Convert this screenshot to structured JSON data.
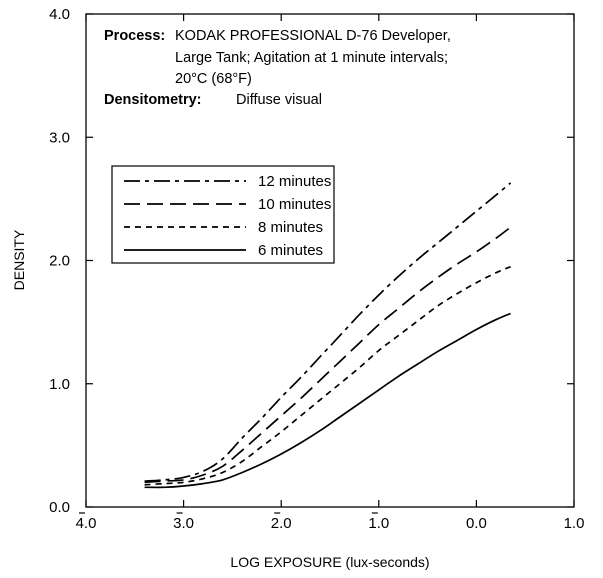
{
  "chart_data": {
    "type": "line",
    "xlabel": "LOG EXPOSURE (lux-seconds)",
    "ylabel": "DENSITY",
    "xlim": [
      -4.0,
      1.0
    ],
    "ylim": [
      0.0,
      4.0
    ],
    "x_ticks": [
      {
        "value": -4.0,
        "label": "4.0",
        "bar": true
      },
      {
        "value": -3.0,
        "label": "3.0",
        "bar": true
      },
      {
        "value": -2.0,
        "label": "2.0",
        "bar": true
      },
      {
        "value": -1.0,
        "label": "1.0",
        "bar": true
      },
      {
        "value": 0.0,
        "label": "0.0",
        "bar": false
      },
      {
        "value": 1.0,
        "label": "1.0",
        "bar": false
      }
    ],
    "y_ticks": [
      {
        "value": 0.0,
        "label": "0.0"
      },
      {
        "value": 1.0,
        "label": "1.0"
      },
      {
        "value": 2.0,
        "label": "2.0"
      },
      {
        "value": 3.0,
        "label": "3.0"
      },
      {
        "value": 4.0,
        "label": "4.0"
      }
    ],
    "annotation": {
      "process_label": "Process:",
      "process_lines": [
        "KODAK PROFESSIONAL D-76 Developer,",
        "Large Tank; Agitation at 1 minute intervals;",
        "20°C (68°F)"
      ],
      "densitometry_label": "Densitometry:",
      "densitometry_value": "Diffuse visual"
    },
    "legend_position": "upper-left",
    "series": [
      {
        "name": "12 minutes",
        "style": "dash-dot",
        "x": [
          -3.4,
          -3.2,
          -3.0,
          -2.8,
          -2.6,
          -2.4,
          -2.2,
          -2.0,
          -1.8,
          -1.6,
          -1.4,
          -1.2,
          -1.0,
          -0.8,
          -0.6,
          -0.4,
          -0.2,
          0.0,
          0.2,
          0.35
        ],
        "y": [
          0.21,
          0.22,
          0.24,
          0.29,
          0.39,
          0.56,
          0.72,
          0.89,
          1.05,
          1.22,
          1.39,
          1.56,
          1.72,
          1.87,
          2.01,
          2.14,
          2.27,
          2.4,
          2.53,
          2.63
        ]
      },
      {
        "name": "10 minutes",
        "style": "long-dash",
        "x": [
          -3.4,
          -3.2,
          -3.0,
          -2.8,
          -2.6,
          -2.4,
          -2.2,
          -2.0,
          -1.8,
          -1.6,
          -1.4,
          -1.2,
          -1.0,
          -0.8,
          -0.6,
          -0.4,
          -0.2,
          0.0,
          0.2,
          0.35
        ],
        "y": [
          0.2,
          0.21,
          0.22,
          0.26,
          0.33,
          0.46,
          0.6,
          0.74,
          0.88,
          1.03,
          1.18,
          1.33,
          1.48,
          1.61,
          1.74,
          1.86,
          1.97,
          2.07,
          2.18,
          2.27
        ]
      },
      {
        "name": "8 minutes",
        "style": "short-dash",
        "x": [
          -3.4,
          -3.2,
          -3.0,
          -2.8,
          -2.6,
          -2.4,
          -2.2,
          -2.0,
          -1.8,
          -1.6,
          -1.4,
          -1.2,
          -1.0,
          -0.8,
          -0.6,
          -0.4,
          -0.2,
          0.0,
          0.2,
          0.35
        ],
        "y": [
          0.18,
          0.19,
          0.2,
          0.23,
          0.28,
          0.37,
          0.49,
          0.61,
          0.74,
          0.87,
          1.0,
          1.13,
          1.27,
          1.39,
          1.51,
          1.63,
          1.73,
          1.82,
          1.9,
          1.95
        ]
      },
      {
        "name": "6 minutes",
        "style": "solid",
        "x": [
          -3.4,
          -3.2,
          -3.0,
          -2.8,
          -2.6,
          -2.4,
          -2.2,
          -2.0,
          -1.8,
          -1.6,
          -1.4,
          -1.2,
          -1.0,
          -0.8,
          -0.6,
          -0.4,
          -0.2,
          0.0,
          0.2,
          0.35
        ],
        "y": [
          0.16,
          0.16,
          0.17,
          0.19,
          0.22,
          0.28,
          0.35,
          0.43,
          0.52,
          0.62,
          0.73,
          0.84,
          0.95,
          1.06,
          1.16,
          1.26,
          1.35,
          1.44,
          1.52,
          1.57
        ]
      }
    ]
  }
}
